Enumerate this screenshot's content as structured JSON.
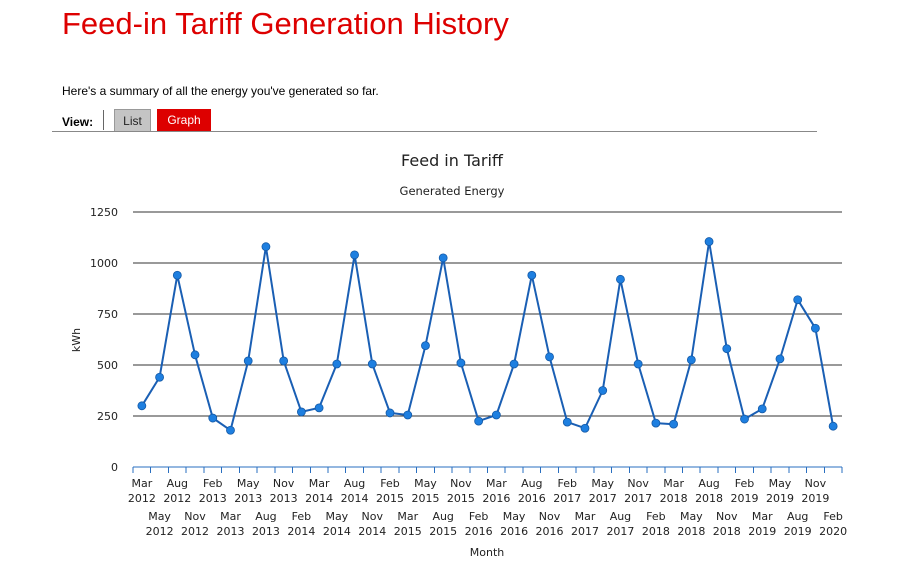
{
  "page": {
    "title": "Feed-in Tariff Generation History",
    "intro": "Here's a summary of all the energy you've generated so far."
  },
  "view": {
    "label": "View:",
    "tabs": [
      {
        "label": "List",
        "active": false
      },
      {
        "label": "Graph",
        "active": true
      }
    ],
    "colors": {
      "accent": "#dd0000",
      "inactive_tab": "#c4c4c4"
    }
  },
  "chart_data": {
    "type": "line",
    "title": "Feed in Tariff",
    "subtitle": "Generated Energy",
    "xlabel": "Month",
    "ylabel": "kWh",
    "ylim": [
      0,
      1250
    ],
    "yticks": [
      0,
      250,
      500,
      750,
      1000,
      1250
    ],
    "grid": true,
    "legend": "none",
    "line_color": "#1a5fb4",
    "marker_color": "#1e7fe0",
    "x": [
      "Mar 2012",
      "May 2012",
      "Aug 2012",
      "Nov 2012",
      "Feb 2013",
      "Mar 2013",
      "May 2013",
      "Aug 2013",
      "Nov 2013",
      "Feb 2014",
      "Mar 2014",
      "May 2014",
      "Aug 2014",
      "Nov 2014",
      "Feb 2015",
      "Mar 2015",
      "May 2015",
      "Aug 2015",
      "Nov 2015",
      "Feb 2016",
      "Mar 2016",
      "May 2016",
      "Aug 2016",
      "Nov 2016",
      "Feb 2017",
      "Mar 2017",
      "May 2017",
      "Aug 2017",
      "Nov 2017",
      "Feb 2018",
      "Mar 2018",
      "May 2018",
      "Aug 2018",
      "Nov 2018",
      "Feb 2019",
      "Mar 2019",
      "May 2019",
      "Aug 2019",
      "Nov 2019",
      "Feb 2020"
    ],
    "values": [
      300,
      440,
      940,
      550,
      240,
      180,
      520,
      1080,
      520,
      270,
      290,
      505,
      1040,
      505,
      265,
      255,
      595,
      1025,
      510,
      225,
      255,
      505,
      940,
      540,
      220,
      190,
      375,
      920,
      505,
      215,
      210,
      525,
      1105,
      580,
      235,
      285,
      530,
      820,
      680,
      200
    ]
  }
}
